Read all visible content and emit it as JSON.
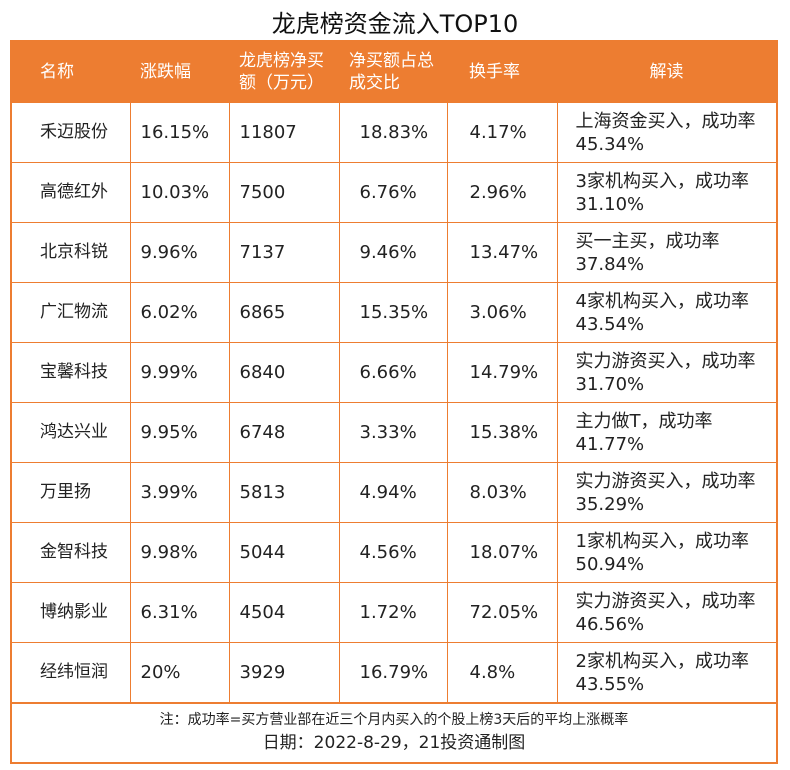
{
  "title": "龙虎榜资金流入TOP10",
  "accent": "#ED7D31",
  "headers": [
    "名称",
    "涨跌幅",
    "龙虎榜净买额（万元）",
    "净买额占总成交比",
    "换手率",
    "解读"
  ],
  "rows": [
    [
      "禾迈股份",
      "16.15%",
      "11807",
      "18.83%",
      "4.17%",
      "上海资金买入，成功率45.34%"
    ],
    [
      "高德红外",
      "10.03%",
      "7500",
      "6.76%",
      "2.96%",
      "3家机构买入，成功率31.10%"
    ],
    [
      "北京科锐",
      "9.96%",
      "7137",
      "9.46%",
      "13.47%",
      "买一主买，成功率37.84%"
    ],
    [
      "广汇物流",
      "6.02%",
      "6865",
      "15.35%",
      "3.06%",
      "4家机构买入，成功率43.54%"
    ],
    [
      "宝馨科技",
      "9.99%",
      "6840",
      "6.66%",
      "14.79%",
      "实力游资买入，成功率31.70%"
    ],
    [
      "鸿达兴业",
      "9.95%",
      "6748",
      "3.33%",
      "15.38%",
      "主力做T，成功率41.77%"
    ],
    [
      "万里扬",
      "3.99%",
      "5813",
      "4.94%",
      "8.03%",
      "实力游资买入，成功率35.29%"
    ],
    [
      "金智科技",
      "9.98%",
      "5044",
      "4.56%",
      "18.07%",
      "1家机构买入，成功率50.94%"
    ],
    [
      "博纳影业",
      "6.31%",
      "4504",
      "1.72%",
      "72.05%",
      "实力游资买入，成功率46.56%"
    ],
    [
      "经纬恒润",
      "20%",
      "3929",
      "16.79%",
      "4.8%",
      "2家机构买入，成功率43.55%"
    ]
  ],
  "footer": {
    "note": "注：成功率=买方营业部在近三个月内买入的个股上榜3天后的平均上涨概率",
    "date": "日期：2022-8-29，21投资通制图"
  }
}
